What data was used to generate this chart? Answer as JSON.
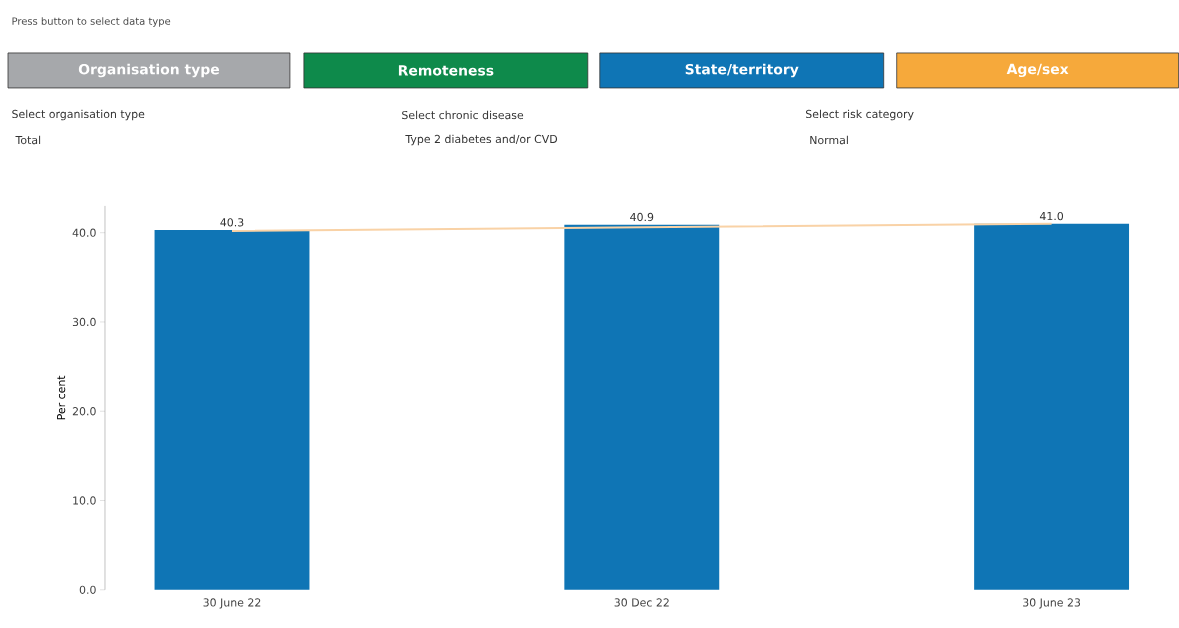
{
  "chart_data": {
    "type": "bar",
    "title": "Press button to select data type",
    "annotations": [
      "Organisation type",
      "Remoteness",
      "State/territory",
      "Age/sex",
      "Select organisation type",
      "Total",
      "Select chronic disease",
      "Type 2 diabetes and/or CVD",
      "Select risk category",
      "Normal"
    ],
    "categories": [
      "30 June 22",
      "30 Dec 22",
      "30 June 23"
    ],
    "series": [
      {
        "color": "#0f75b5",
        "values": [
          40.3,
          40.9,
          41.0
        ],
        "value_labels": [
          "40.3",
          "40.9",
          "41.0"
        ]
      },
      {
        "type": "line",
        "color": "#f9d2a6",
        "values": [
          40.2,
          40.6,
          41.0
        ]
      }
    ],
    "ylabel": "Per cent",
    "ylim": [
      0,
      43
    ],
    "yticks": [
      {
        "value": 0,
        "label": "0.0"
      },
      {
        "value": 10,
        "label": "10.0"
      },
      {
        "value": 20,
        "label": "20.0"
      },
      {
        "value": 30,
        "label": "30.0"
      },
      {
        "value": 40,
        "label": "40.0"
      }
    ]
  }
}
